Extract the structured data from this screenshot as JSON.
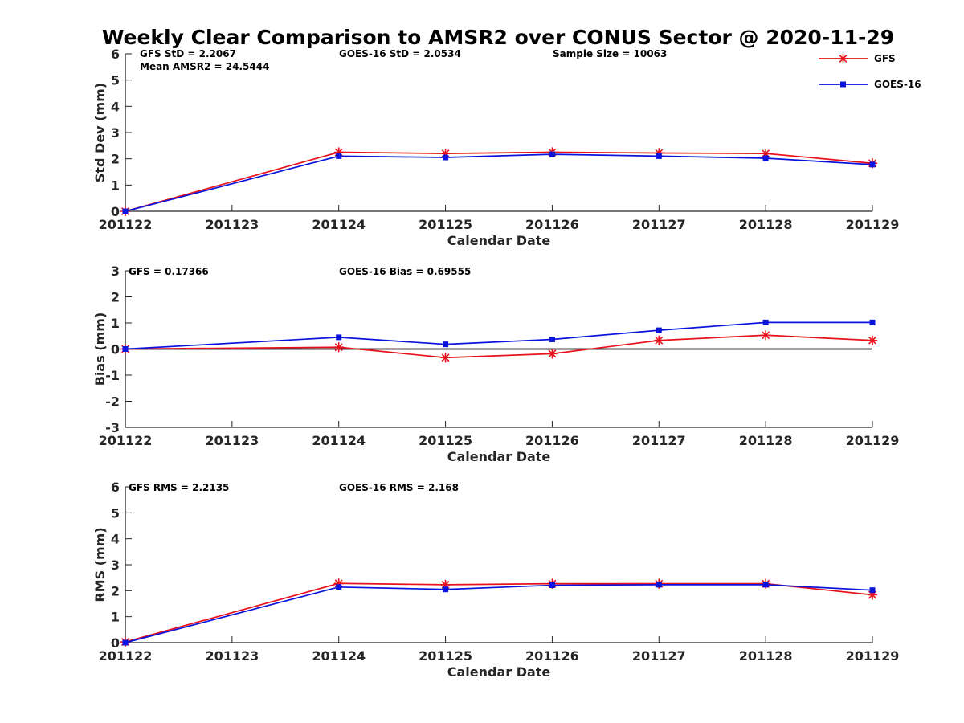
{
  "title": "Weekly Clear Comparison to AMSR2 over CONUS Sector @ 2020-11-29",
  "legend": {
    "placement": "top-right",
    "entries": [
      {
        "label": "GFS",
        "color": "#e8111b",
        "marker": "asterisk"
      },
      {
        "label": "GOES-16",
        "color": "#0a14dc",
        "marker": "square"
      }
    ]
  },
  "chart_data": [
    {
      "type": "line",
      "title": "",
      "xlabel": "Calendar Date",
      "ylabel": "Std Dev (mm)",
      "categories": [
        "201122",
        "201123",
        "201124",
        "201125",
        "201126",
        "201127",
        "201128",
        "201129"
      ],
      "ylim": [
        0,
        6
      ],
      "yticks": [
        0,
        1,
        2,
        3,
        4,
        5,
        6
      ],
      "zero_line": false,
      "annotations": [
        "GFS StD = 2.2067",
        "GOES-16 StD = 2.0534",
        "Sample Size = 10063",
        "Mean AMSR2 = 24.5444"
      ],
      "series": [
        {
          "name": "GFS",
          "color": "#e8111b",
          "marker": "asterisk",
          "points": [
            [
              0,
              0
            ],
            [
              2,
              2.25
            ],
            [
              3,
              2.2
            ],
            [
              4,
              2.25
            ],
            [
              5,
              2.22
            ],
            [
              6,
              2.2
            ],
            [
              7,
              1.83
            ]
          ]
        },
        {
          "name": "GOES-16",
          "color": "#0a14dc",
          "marker": "square",
          "points": [
            [
              0,
              0
            ],
            [
              2,
              2.1
            ],
            [
              3,
              2.05
            ],
            [
              4,
              2.17
            ],
            [
              5,
              2.1
            ],
            [
              6,
              2.02
            ],
            [
              7,
              1.78
            ]
          ]
        }
      ]
    },
    {
      "type": "line",
      "title": "",
      "xlabel": "Calendar Date",
      "ylabel": "Bias (mm)",
      "categories": [
        "201122",
        "201123",
        "201124",
        "201125",
        "201126",
        "201127",
        "201128",
        "201129"
      ],
      "ylim": [
        -3,
        3
      ],
      "yticks": [
        -3,
        -2,
        -1,
        0,
        1,
        2,
        3
      ],
      "zero_line": true,
      "annotations": [
        "GFS = 0.17366",
        "GOES-16 Bias  = 0.69555"
      ],
      "series": [
        {
          "name": "GFS",
          "color": "#e8111b",
          "marker": "asterisk",
          "points": [
            [
              0,
              0
            ],
            [
              2,
              0.07
            ],
            [
              3,
              -0.33
            ],
            [
              4,
              -0.18
            ],
            [
              5,
              0.33
            ],
            [
              6,
              0.53
            ],
            [
              7,
              0.33
            ]
          ]
        },
        {
          "name": "GOES-16",
          "color": "#0a14dc",
          "marker": "square",
          "points": [
            [
              0,
              0
            ],
            [
              2,
              0.45
            ],
            [
              3,
              0.18
            ],
            [
              4,
              0.37
            ],
            [
              5,
              0.72
            ],
            [
              6,
              1.02
            ],
            [
              7,
              1.02
            ]
          ]
        }
      ]
    },
    {
      "type": "line",
      "title": "",
      "xlabel": "Calendar Date",
      "ylabel": "RMS (mm)",
      "categories": [
        "201122",
        "201123",
        "201124",
        "201125",
        "201126",
        "201127",
        "201128",
        "201129"
      ],
      "ylim": [
        0,
        6
      ],
      "yticks": [
        0,
        1,
        2,
        3,
        4,
        5,
        6
      ],
      "zero_line": false,
      "annotations": [
        "GFS RMS = 2.2135",
        "GOES-16 RMS = 2.168"
      ],
      "series": [
        {
          "name": "GFS",
          "color": "#e8111b",
          "marker": "asterisk",
          "points": [
            [
              0,
              0.03
            ],
            [
              2,
              2.28
            ],
            [
              3,
              2.23
            ],
            [
              4,
              2.27
            ],
            [
              5,
              2.27
            ],
            [
              6,
              2.27
            ],
            [
              7,
              1.84
            ]
          ]
        },
        {
          "name": "GOES-16",
          "color": "#0a14dc",
          "marker": "square",
          "points": [
            [
              0,
              0
            ],
            [
              2,
              2.14
            ],
            [
              3,
              2.05
            ],
            [
              4,
              2.21
            ],
            [
              5,
              2.23
            ],
            [
              6,
              2.23
            ],
            [
              7,
              2.02
            ]
          ]
        }
      ]
    }
  ]
}
